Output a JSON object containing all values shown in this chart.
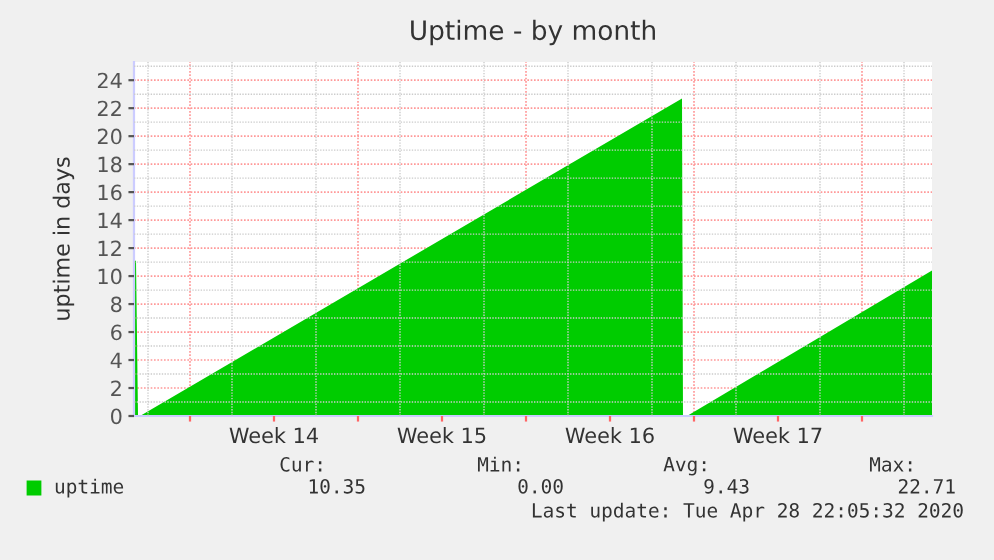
{
  "chart_data": {
    "type": "area",
    "title": "Uptime - by month",
    "ylabel": "uptime in days",
    "x": [
      "2020-03-26T16:00",
      "2020-03-26T18:00",
      "2020-03-26T20:00",
      "2020-03-26T22:00",
      "2020-04-18T12:00",
      "2020-04-18T13:00",
      "2020-04-18T17:00",
      "2020-04-28T22:00"
    ],
    "series": [
      {
        "name": "uptime",
        "color": "#00cc00",
        "values": [
          11.1,
          11.1,
          0,
          0,
          22.7,
          0,
          0,
          10.4
        ]
      }
    ],
    "xlim": [
      "2020-03-26T16:00",
      "2020-04-28T22:00"
    ],
    "xticks": [
      {
        "value": "2020-03-29T00:00",
        "label": null
      },
      {
        "value": "2020-04-01T12:00",
        "label": "Week 14"
      },
      {
        "value": "2020-04-05T00:00",
        "label": null
      },
      {
        "value": "2020-04-08T12:00",
        "label": "Week 15"
      },
      {
        "value": "2020-04-12T00:00",
        "label": null
      },
      {
        "value": "2020-04-15T12:00",
        "label": "Week 16"
      },
      {
        "value": "2020-04-19T00:00",
        "label": null
      },
      {
        "value": "2020-04-22T12:00",
        "label": "Week 17"
      },
      {
        "value": "2020-04-26T00:00",
        "label": null
      }
    ],
    "ylim": [
      0,
      25.3
    ],
    "yticks": [
      0,
      2,
      4,
      6,
      8,
      10,
      12,
      14,
      16,
      18,
      20,
      22,
      24
    ],
    "grid": true,
    "legend": "bottom",
    "annotations": [
      "Cur:",
      "10.35",
      "Min:",
      "0.00",
      "Avg:",
      "9.43",
      "Max:",
      "22.71",
      "Last update: Tue Apr 28 22:05:32 2020"
    ]
  }
}
